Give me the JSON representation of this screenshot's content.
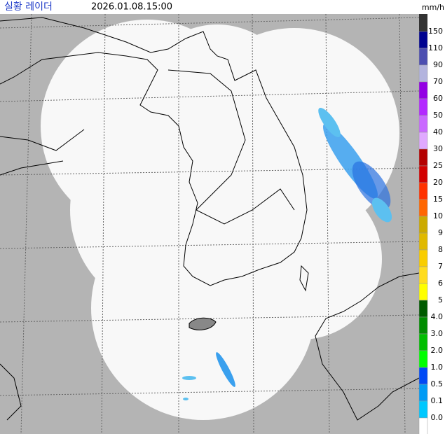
{
  "header": {
    "title": "실황 레이더",
    "timestamp": "2026.01.08.15:00"
  },
  "legend": {
    "unit": "mm/h",
    "items": [
      {
        "label": "150",
        "color": "#000390"
      },
      {
        "label": "110",
        "color": "#4c4eb1"
      },
      {
        "label": "90",
        "color": "#b3b4de"
      },
      {
        "label": "70",
        "color": "#9300e4"
      },
      {
        "label": "60",
        "color": "#b329ff"
      },
      {
        "label": "50",
        "color": "#c969ff"
      },
      {
        "label": "40",
        "color": "#e0a9ff"
      },
      {
        "label": "30",
        "color": "#b40000"
      },
      {
        "label": "25",
        "color": "#d20000"
      },
      {
        "label": "20",
        "color": "#ff3200"
      },
      {
        "label": "15",
        "color": "#ff6600"
      },
      {
        "label": "10",
        "color": "#ccaa00"
      },
      {
        "label": "9",
        "color": "#e0b900"
      },
      {
        "label": "8",
        "color": "#f9cd00"
      },
      {
        "label": "7",
        "color": "#ffdc1f"
      },
      {
        "label": "6",
        "color": "#ffff00"
      },
      {
        "label": "5",
        "color": "#005a00"
      },
      {
        "label": "4.0",
        "color": "#008c00"
      },
      {
        "label": "3.0",
        "color": "#00be00"
      },
      {
        "label": "2.0",
        "color": "#00ff00"
      },
      {
        "label": "1.0",
        "color": "#0049f5"
      },
      {
        "label": "0.5",
        "color": "#009bf5"
      },
      {
        "label": "0.1",
        "color": "#00c8ff"
      },
      {
        "label": "0.0",
        "color": "#ffffff"
      }
    ]
  }
}
